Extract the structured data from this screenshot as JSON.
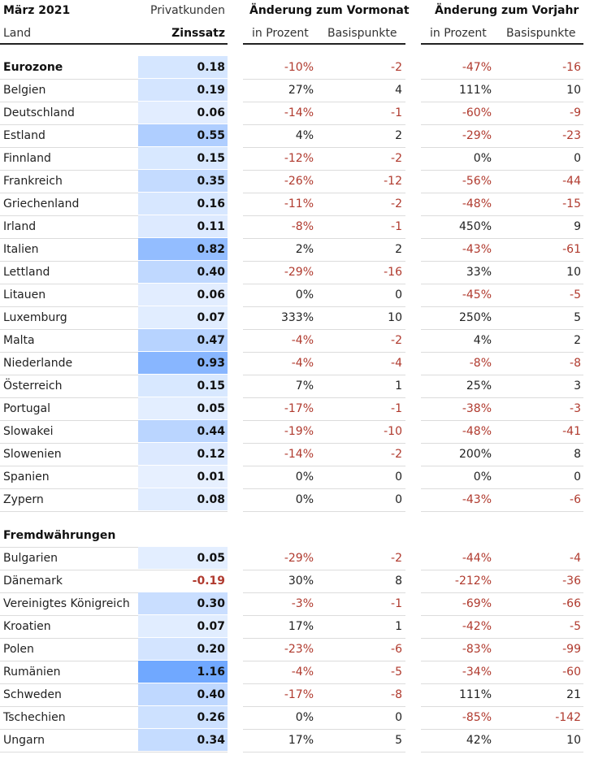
{
  "header": {
    "col_country_top": "März 2021",
    "col_country": "Land",
    "col_rate_top": "Privatkunden",
    "col_rate": "Zinssatz",
    "group_month": "Änderung zum Vormonat",
    "group_year": "Änderung zum Vorjahr",
    "sub_pct": "in Prozent",
    "sub_bp": "Basispunkte"
  },
  "chart_data": {
    "type": "table",
    "columns": [
      "Land",
      "Zinssatz",
      "Vormonat in Prozent",
      "Vormonat Basispunkte",
      "Vorjahr in Prozent",
      "Vorjahr Basispunkte"
    ],
    "sections": [
      {
        "name": "Eurozone",
        "rows": [
          {
            "label": "Eurozone",
            "rate": "0.18",
            "mp": "-10%",
            "mb": "-2",
            "yp": "-47%",
            "yb": "-16",
            "heading": true
          },
          {
            "label": "Belgien",
            "rate": "0.19",
            "mp": "27%",
            "mb": "4",
            "yp": "111%",
            "yb": "10"
          },
          {
            "label": "Deutschland",
            "rate": "0.06",
            "mp": "-14%",
            "mb": "-1",
            "yp": "-60%",
            "yb": "-9"
          },
          {
            "label": "Estland",
            "rate": "0.55",
            "mp": "4%",
            "mb": "2",
            "yp": "-29%",
            "yb": "-23"
          },
          {
            "label": "Finnland",
            "rate": "0.15",
            "mp": "-12%",
            "mb": "-2",
            "yp": "0%",
            "yb": "0"
          },
          {
            "label": "Frankreich",
            "rate": "0.35",
            "mp": "-26%",
            "mb": "-12",
            "yp": "-56%",
            "yb": "-44"
          },
          {
            "label": "Griechenland",
            "rate": "0.16",
            "mp": "-11%",
            "mb": "-2",
            "yp": "-48%",
            "yb": "-15"
          },
          {
            "label": "Irland",
            "rate": "0.11",
            "mp": "-8%",
            "mb": "-1",
            "yp": "450%",
            "yb": "9"
          },
          {
            "label": "Italien",
            "rate": "0.82",
            "mp": "2%",
            "mb": "2",
            "yp": "-43%",
            "yb": "-61"
          },
          {
            "label": "Lettland",
            "rate": "0.40",
            "mp": "-29%",
            "mb": "-16",
            "yp": "33%",
            "yb": "10"
          },
          {
            "label": "Litauen",
            "rate": "0.06",
            "mp": "0%",
            "mb": "0",
            "yp": "-45%",
            "yb": "-5"
          },
          {
            "label": "Luxemburg",
            "rate": "0.07",
            "mp": "333%",
            "mb": "10",
            "yp": "250%",
            "yb": "5"
          },
          {
            "label": "Malta",
            "rate": "0.47",
            "mp": "-4%",
            "mb": "-2",
            "yp": "4%",
            "yb": "2"
          },
          {
            "label": "Niederlande",
            "rate": "0.93",
            "mp": "-4%",
            "mb": "-4",
            "yp": "-8%",
            "yb": "-8"
          },
          {
            "label": "Österreich",
            "rate": "0.15",
            "mp": "7%",
            "mb": "1",
            "yp": "25%",
            "yb": "3"
          },
          {
            "label": "Portugal",
            "rate": "0.05",
            "mp": "-17%",
            "mb": "-1",
            "yp": "-38%",
            "yb": "-3"
          },
          {
            "label": "Slowakei",
            "rate": "0.44",
            "mp": "-19%",
            "mb": "-10",
            "yp": "-48%",
            "yb": "-41"
          },
          {
            "label": "Slowenien",
            "rate": "0.12",
            "mp": "-14%",
            "mb": "-2",
            "yp": "200%",
            "yb": "8"
          },
          {
            "label": "Spanien",
            "rate": "0.01",
            "mp": "0%",
            "mb": "0",
            "yp": "0%",
            "yb": "0"
          },
          {
            "label": "Zypern",
            "rate": "0.08",
            "mp": "0%",
            "mb": "0",
            "yp": "-43%",
            "yb": "-6"
          }
        ]
      },
      {
        "name": "Fremdwährungen",
        "rows": [
          {
            "label": "Bulgarien",
            "rate": "0.05",
            "mp": "-29%",
            "mb": "-2",
            "yp": "-44%",
            "yb": "-4"
          },
          {
            "label": "Dänemark",
            "rate": "-0.19",
            "mp": "30%",
            "mb": "8",
            "yp": "-212%",
            "yb": "-36"
          },
          {
            "label": "Vereinigtes Königreich",
            "rate": "0.30",
            "mp": "-3%",
            "mb": "-1",
            "yp": "-69%",
            "yb": "-66"
          },
          {
            "label": "Kroatien",
            "rate": "0.07",
            "mp": "17%",
            "mb": "1",
            "yp": "-42%",
            "yb": "-5"
          },
          {
            "label": "Polen",
            "rate": "0.20",
            "mp": "-23%",
            "mb": "-6",
            "yp": "-83%",
            "yb": "-99"
          },
          {
            "label": "Rumänien",
            "rate": "1.16",
            "mp": "-4%",
            "mb": "-5",
            "yp": "-34%",
            "yb": "-60"
          },
          {
            "label": "Schweden",
            "rate": "0.40",
            "mp": "-17%",
            "mb": "-8",
            "yp": "111%",
            "yb": "21"
          },
          {
            "label": "Tschechien",
            "rate": "0.26",
            "mp": "0%",
            "mb": "0",
            "yp": "-85%",
            "yb": "-142"
          },
          {
            "label": "Ungarn",
            "rate": "0.34",
            "mp": "17%",
            "mb": "5",
            "yp": "42%",
            "yb": "10"
          }
        ]
      }
    ]
  }
}
